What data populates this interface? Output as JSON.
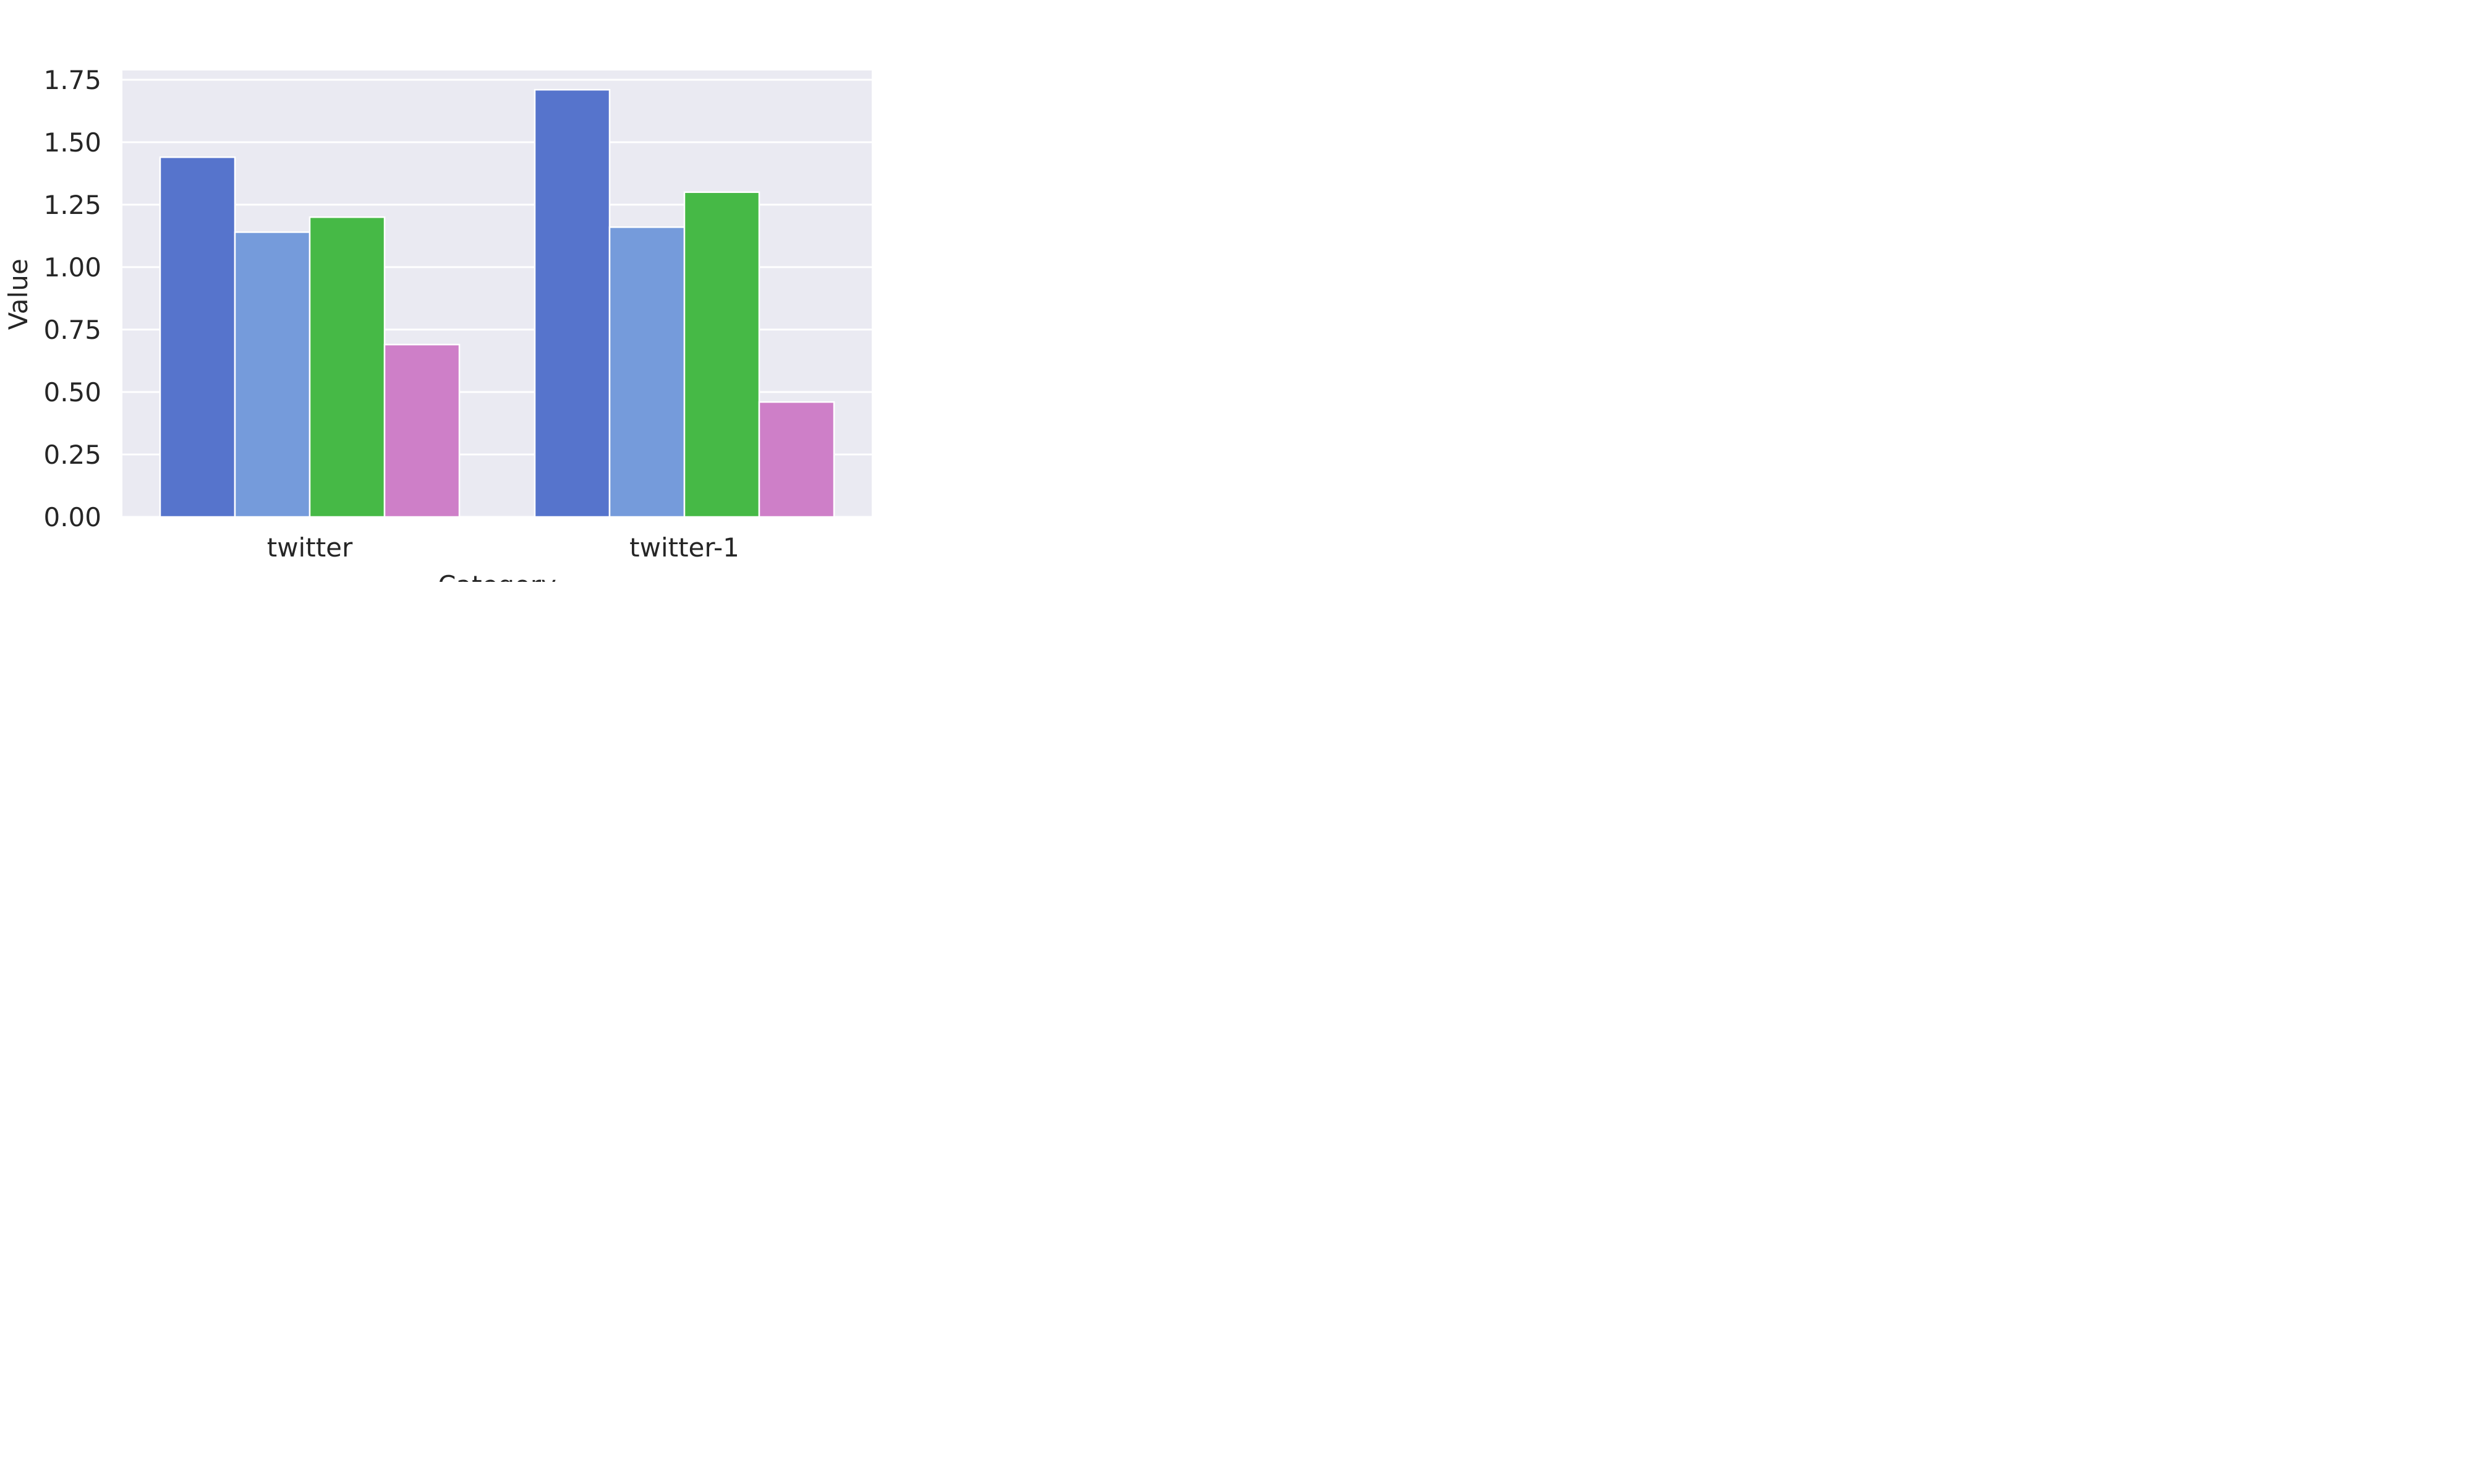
{
  "chart_data": {
    "type": "bar",
    "categories": [
      "twitter",
      "twitter-1"
    ],
    "series": [
      {
        "values": [
          1.44,
          1.71
        ],
        "color": "#5674cc"
      },
      {
        "values": [
          1.14,
          1.16
        ],
        "color": "#759bdb"
      },
      {
        "values": [
          1.2,
          1.3
        ],
        "color": "#46b946"
      },
      {
        "values": [
          0.69,
          0.46
        ],
        "color": "#ce7fc8"
      }
    ],
    "title": "",
    "xlabel": "Category",
    "ylabel": "Value",
    "ylim": [
      0,
      1.8
    ],
    "yticks": [
      "0.00",
      "0.25",
      "0.50",
      "0.75",
      "1.00",
      "1.25",
      "1.50",
      "1.75"
    ],
    "grid": true,
    "background": "#eaeaf2",
    "gridColor": "#ffffff",
    "legend": "none"
  }
}
